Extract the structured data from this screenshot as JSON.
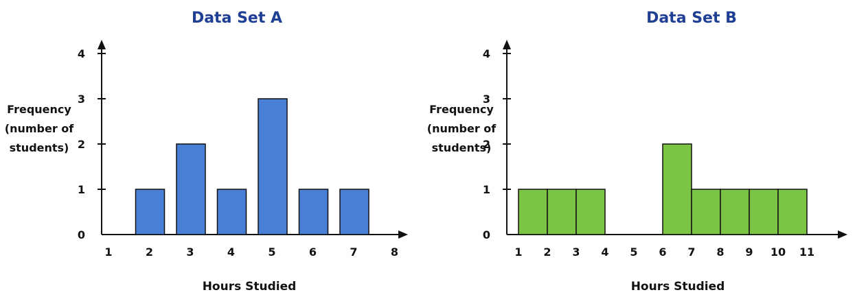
{
  "chart_data": [
    {
      "type": "bar",
      "title": "Data Set A",
      "xlabel": "Hours Studied",
      "ylabel": "Frequency\n(number of\nstudents)",
      "xticks": [
        1,
        2,
        3,
        4,
        5,
        6,
        7,
        8
      ],
      "yticks": [
        0,
        1,
        2,
        3,
        4
      ],
      "ylim": [
        0,
        4
      ],
      "color": "#4a7fd6",
      "x": [
        2,
        3,
        4,
        5,
        6,
        7
      ],
      "values": [
        1,
        2,
        1,
        3,
        1,
        1
      ]
    },
    {
      "type": "bar",
      "title": "Data Set B",
      "xlabel": "Hours Studied",
      "ylabel": "Frequency\n(number of\nstudents)",
      "xticks": [
        1,
        2,
        3,
        4,
        5,
        6,
        7,
        8,
        9,
        10,
        11
      ],
      "yticks": [
        0,
        1,
        2,
        3,
        4
      ],
      "ylim": [
        0,
        4
      ],
      "color": "#7cc444",
      "x": [
        1,
        2,
        3,
        6,
        7,
        8,
        9,
        10
      ],
      "values": [
        1,
        1,
        1,
        2,
        1,
        1,
        1,
        1
      ]
    }
  ]
}
